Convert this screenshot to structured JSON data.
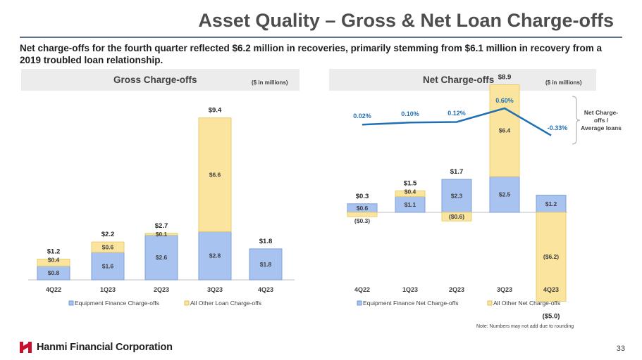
{
  "page": {
    "title": "Asset Quality – Gross & Net Loan Charge-offs",
    "subtitle": "Net charge-offs for the fourth quarter reflected $6.2 million in recoveries, primarily stemming from $6.1 million in recovery from a 2019 troubled loan relationship.",
    "note": "Note: Numbers may not add due to rounding",
    "company": "Hanmi Financial Corporation",
    "page_number": "33",
    "brand_color": "#c8102e"
  },
  "chart_data": [
    {
      "type": "bar",
      "stacked": true,
      "title": "Gross Charge-offs",
      "unit_note": "($ in millions)",
      "categories": [
        "4Q22",
        "1Q23",
        "2Q23",
        "3Q23",
        "4Q23"
      ],
      "series": [
        {
          "name": "Equipment Finance Charge-offs",
          "values": [
            0.8,
            1.6,
            2.6,
            2.8,
            1.8
          ],
          "labels": [
            "$0.8",
            "$1.6",
            "$2.6",
            "$2.8",
            "$1.8"
          ],
          "color": "#a8c3f0"
        },
        {
          "name": "All Other Loan Charge-offs",
          "values": [
            0.4,
            0.6,
            0.1,
            6.6,
            0.0
          ],
          "labels": [
            "$0.4",
            "$0.6",
            "$0.1",
            "$6.6",
            ""
          ],
          "color": "#fbe59e"
        }
      ],
      "totals": [
        "$1.2",
        "$2.2",
        "$2.7",
        "$9.4",
        "$1.8"
      ],
      "legend": "bottom"
    },
    {
      "type": "bar",
      "stacked": true,
      "title": "Net Charge-offs",
      "unit_note": "($ in millions)",
      "categories": [
        "4Q22",
        "1Q23",
        "2Q23",
        "3Q23",
        "4Q23"
      ],
      "series": [
        {
          "name": "Equipment Finance Net Charge-offs",
          "values": [
            0.6,
            1.1,
            2.3,
            2.5,
            1.2
          ],
          "labels": [
            "$0.6",
            "$1.1",
            "$2.3",
            "$2.5",
            "$1.2"
          ],
          "color": "#a8c3f0"
        },
        {
          "name": "All Other Net Charge-offs",
          "values": [
            -0.3,
            0.4,
            -0.6,
            6.4,
            -6.2
          ],
          "labels": [
            "($0.3)",
            "$0.4",
            "($0.6)",
            "$6.4",
            "($6.2)"
          ],
          "color": "#fbe59e"
        }
      ],
      "totals": [
        "$0.3",
        "$1.5",
        "$1.7",
        "$8.9",
        "($5.0)"
      ],
      "ratio_line": {
        "name": "Net Charge-offs / Average loans",
        "values": [
          0.02,
          0.1,
          0.12,
          0.6,
          -0.33
        ],
        "labels": [
          "0.02%",
          "0.10%",
          "0.12%",
          "0.60%",
          "-0.33%"
        ],
        "color": "#1f6fb5"
      },
      "ratio_label_lines": [
        "Net Charge-",
        "offs /",
        "Average loans"
      ],
      "legend": "bottom"
    }
  ]
}
